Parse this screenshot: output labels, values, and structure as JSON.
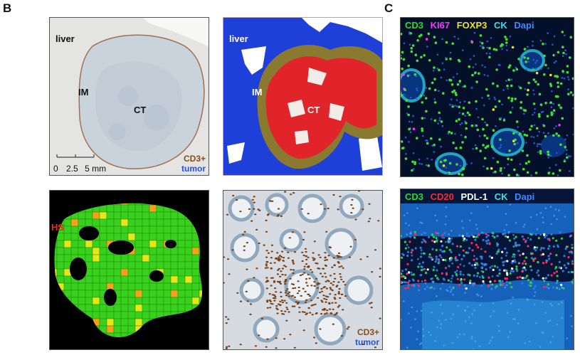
{
  "panels": {
    "b_label": "B",
    "c_label": "C"
  },
  "ihc_overview": {
    "region_liver": "liver",
    "region_im": "IM",
    "region_ct": "CT",
    "scale_ticks": [
      "0",
      "2.5",
      "5 mm"
    ],
    "legend_stain": "CD3+",
    "legend_tumor": "tumor"
  },
  "segmentation": {
    "region_liver": "liver",
    "region_im": "IM",
    "region_ct": "CT",
    "colors": {
      "liver": "#1e3fd8",
      "tumor": "#e0242a",
      "margin": "#8a7a30"
    }
  },
  "heatmap": {
    "label_hs": "HS",
    "colors": {
      "low": "#3ad11e",
      "mid": "#e6e61a",
      "high": "#f5a21a"
    }
  },
  "ihc_zoom": {
    "legend_stain": "CD3+",
    "legend_tumor": "tumor"
  },
  "if_top": {
    "channels": [
      {
        "name": "CD3",
        "color": "#22e022"
      },
      {
        "name": "KI67",
        "color": "#ff33ff"
      },
      {
        "name": "FOXP3",
        "color": "#f2e21a"
      },
      {
        "name": "CK",
        "color": "#33e6e6"
      },
      {
        "name": "Dapi",
        "color": "#3a8cff"
      }
    ]
  },
  "if_bottom": {
    "channels": [
      {
        "name": "CD3",
        "color": "#22e022"
      },
      {
        "name": "CD20",
        "color": "#ff2a2a"
      },
      {
        "name": "PDL-1",
        "color": "#ffffff"
      },
      {
        "name": "CK",
        "color": "#33e6e6"
      },
      {
        "name": "Dapi",
        "color": "#3a8cff"
      }
    ]
  }
}
